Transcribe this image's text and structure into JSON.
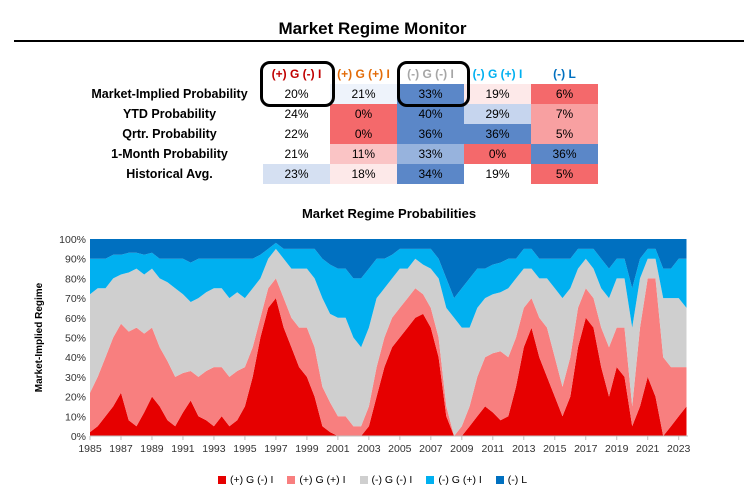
{
  "header": {
    "title": "Market Regime Monitor"
  },
  "table": {
    "columns": [
      {
        "label": "(+) G (-) I",
        "color": "#c00000"
      },
      {
        "label": "(+) G (+) I",
        "color": "#e36c09"
      },
      {
        "label": "(-) G (-) I",
        "color": "#a6a6a6"
      },
      {
        "label": "(-) G (+) I",
        "color": "#00b0f0"
      },
      {
        "label": "(-) L",
        "color": "#0070c0"
      }
    ],
    "rows": [
      {
        "label": "Market-Implied Probability",
        "values": [
          "20%",
          "21%",
          "33%",
          "19%",
          "6%"
        ],
        "bg": [
          "#ffffff",
          "#eef3fb",
          "#5b87c8",
          "#fde9e9",
          "#f4696b"
        ]
      },
      {
        "label": "YTD Probability",
        "values": [
          "24%",
          "0%",
          "40%",
          "29%",
          "7%"
        ],
        "bg": [
          "#ffffff",
          "#f4696b",
          "#5b87c8",
          "#c6d5ee",
          "#f8a0a1"
        ]
      },
      {
        "label": "Qrtr. Probability",
        "values": [
          "22%",
          "0%",
          "36%",
          "36%",
          "5%"
        ],
        "bg": [
          "#ffffff",
          "#f4696b",
          "#5b87c8",
          "#5b87c8",
          "#f8a0a1"
        ]
      },
      {
        "label": "1-Month Probability",
        "values": [
          "21%",
          "11%",
          "33%",
          "0%",
          "36%"
        ],
        "bg": [
          "#ffffff",
          "#fac4c5",
          "#97b3dd",
          "#f4696b",
          "#5b87c8"
        ]
      },
      {
        "label": "Historical Avg.",
        "values": [
          "23%",
          "18%",
          "34%",
          "19%",
          "5%"
        ],
        "bg": [
          "#d5e0f2",
          "#fde9e9",
          "#5b87c8",
          "#ffffff",
          "#f4696b"
        ]
      }
    ]
  },
  "chart_data": {
    "type": "area",
    "title": "Market Regime Probabilities",
    "xlabel": "",
    "ylabel": "Market-Implied Regime",
    "ylim": [
      0,
      100
    ],
    "xlim": [
      1985,
      2023.6
    ],
    "y_ticks": [
      "0%",
      "10%",
      "20%",
      "30%",
      "40%",
      "50%",
      "60%",
      "70%",
      "80%",
      "90%",
      "100%"
    ],
    "x_ticks": [
      "1985",
      "1987",
      "1989",
      "1991",
      "1993",
      "1995",
      "1997",
      "1999",
      "2001",
      "2003",
      "2005",
      "2007",
      "2009",
      "2011",
      "2013",
      "2015",
      "2017",
      "2019",
      "2021",
      "2023"
    ],
    "stacked": true,
    "x": [
      1985,
      1985.5,
      1986,
      1986.5,
      1987,
      1987.5,
      1988,
      1988.5,
      1989,
      1989.5,
      1990,
      1990.5,
      1991,
      1991.5,
      1992,
      1992.5,
      1993,
      1993.5,
      1994,
      1994.5,
      1995,
      1995.5,
      1996,
      1996.5,
      1997,
      1997.5,
      1998,
      1998.5,
      1999,
      1999.5,
      2000,
      2000.5,
      2001,
      2001.5,
      2002,
      2002.5,
      2003,
      2003.5,
      2004,
      2004.5,
      2005,
      2005.5,
      2006,
      2006.5,
      2007,
      2007.5,
      2008,
      2008.5,
      2009,
      2009.5,
      2010,
      2010.5,
      2011,
      2011.5,
      2012,
      2012.5,
      2013,
      2013.5,
      2014,
      2014.5,
      2015,
      2015.5,
      2016,
      2016.5,
      2017,
      2017.5,
      2018,
      2018.5,
      2019,
      2019.5,
      2020,
      2020.5,
      2021,
      2021.5,
      2022,
      2022.5,
      2023,
      2023.5
    ],
    "series": [
      {
        "name": "(+) G (-) I",
        "color": "#e60000",
        "values": [
          2,
          5,
          10,
          15,
          22,
          8,
          5,
          12,
          20,
          15,
          8,
          5,
          12,
          18,
          10,
          8,
          5,
          10,
          5,
          8,
          15,
          30,
          50,
          65,
          70,
          55,
          45,
          35,
          30,
          20,
          5,
          2,
          0,
          0,
          0,
          0,
          5,
          20,
          35,
          45,
          50,
          55,
          60,
          62,
          55,
          40,
          10,
          0,
          0,
          5,
          10,
          15,
          12,
          8,
          10,
          25,
          45,
          55,
          40,
          30,
          20,
          10,
          20,
          45,
          60,
          55,
          35,
          20,
          35,
          30,
          5,
          15,
          30,
          20,
          0,
          5,
          10,
          15
        ]
      },
      {
        "name": "(+) G (+) I",
        "color": "#f87f7f",
        "values": [
          20,
          25,
          30,
          35,
          35,
          45,
          50,
          40,
          35,
          30,
          30,
          25,
          20,
          15,
          20,
          25,
          30,
          25,
          25,
          25,
          20,
          15,
          10,
          10,
          10,
          15,
          15,
          20,
          25,
          25,
          20,
          15,
          10,
          10,
          5,
          5,
          10,
          15,
          15,
          15,
          15,
          15,
          15,
          10,
          10,
          10,
          5,
          0,
          5,
          10,
          20,
          25,
          30,
          35,
          30,
          25,
          20,
          15,
          20,
          25,
          20,
          15,
          20,
          20,
          15,
          15,
          20,
          25,
          20,
          25,
          10,
          40,
          50,
          60,
          40,
          30,
          25,
          20
        ]
      },
      {
        "name": "(-) G (-) I",
        "color": "#cfcfcf",
        "values": [
          50,
          45,
          35,
          30,
          25,
          30,
          30,
          30,
          30,
          35,
          40,
          45,
          40,
          35,
          40,
          40,
          40,
          40,
          40,
          40,
          35,
          30,
          20,
          15,
          15,
          20,
          25,
          30,
          30,
          35,
          45,
          45,
          50,
          50,
          45,
          40,
          40,
          35,
          25,
          20,
          20,
          15,
          15,
          15,
          20,
          30,
          50,
          60,
          50,
          40,
          35,
          30,
          30,
          30,
          35,
          30,
          20,
          15,
          20,
          25,
          35,
          45,
          35,
          20,
          15,
          15,
          20,
          25,
          25,
          25,
          40,
          25,
          10,
          10,
          30,
          35,
          35,
          30
        ]
      },
      {
        "name": "(-) G (+) I",
        "color": "#00b0f0",
        "values": [
          18,
          15,
          15,
          12,
          10,
          10,
          8,
          10,
          8,
          10,
          12,
          15,
          18,
          20,
          20,
          17,
          15,
          15,
          20,
          17,
          20,
          15,
          12,
          5,
          3,
          5,
          10,
          10,
          10,
          15,
          20,
          25,
          25,
          25,
          30,
          35,
          30,
          20,
          15,
          12,
          10,
          10,
          5,
          8,
          10,
          10,
          15,
          10,
          20,
          25,
          20,
          15,
          15,
          15,
          15,
          10,
          10,
          10,
          10,
          10,
          15,
          20,
          15,
          10,
          5,
          10,
          15,
          15,
          10,
          10,
          20,
          10,
          5,
          5,
          15,
          15,
          20,
          25
        ]
      },
      {
        "name": "(-) L",
        "color": "#0070c0",
        "values": [
          10,
          10,
          10,
          8,
          8,
          7,
          7,
          8,
          7,
          10,
          10,
          10,
          10,
          12,
          10,
          10,
          10,
          10,
          10,
          10,
          10,
          10,
          8,
          5,
          2,
          5,
          5,
          5,
          5,
          5,
          10,
          13,
          15,
          15,
          20,
          20,
          15,
          10,
          10,
          8,
          5,
          5,
          5,
          5,
          5,
          10,
          20,
          30,
          25,
          20,
          15,
          15,
          13,
          12,
          10,
          10,
          5,
          5,
          10,
          10,
          10,
          10,
          10,
          5,
          5,
          5,
          10,
          15,
          10,
          10,
          25,
          10,
          5,
          5,
          15,
          15,
          10,
          10
        ]
      }
    ]
  }
}
